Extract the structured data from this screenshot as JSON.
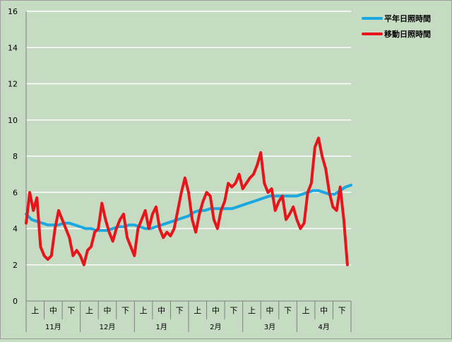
{
  "chart_data": {
    "type": "line",
    "ylim": [
      0,
      16
    ],
    "y_ticks": [
      "0",
      "2",
      "4",
      "6",
      "8",
      "10",
      "12",
      "14",
      "16"
    ],
    "grid": true,
    "legend_position": "top-right",
    "x_sub_labels": [
      "上",
      "中",
      "下"
    ],
    "x_months": [
      "11月",
      "12月",
      "1月",
      "2月",
      "3月",
      "4月"
    ],
    "colors": {
      "background": "#c5dcc2",
      "normal_line": "#1ba7e0",
      "moving_line": "#e8141a",
      "grid": "#ffffff"
    },
    "series": [
      {
        "name": "平年日照時間",
        "x": [
          0,
          3,
          6,
          9,
          12,
          15,
          18,
          21,
          24,
          27,
          30,
          33,
          36,
          39,
          42,
          45,
          48,
          51,
          54,
          57,
          60,
          63,
          66,
          69,
          72,
          75,
          78,
          81,
          84,
          87,
          90,
          93,
          96,
          99,
          102,
          105,
          108,
          111,
          114,
          117,
          120,
          123,
          126,
          129,
          132,
          135,
          138,
          141,
          144,
          147,
          150,
          153,
          156,
          159,
          162,
          165,
          168,
          171,
          174,
          177,
          180
        ],
        "values": [
          4.8,
          4.5,
          4.4,
          4.3,
          4.2,
          4.2,
          4.2,
          4.3,
          4.3,
          4.2,
          4.1,
          4.0,
          4.0,
          3.9,
          3.9,
          3.9,
          4.0,
          4.1,
          4.1,
          4.2,
          4.2,
          4.1,
          4.0,
          4.0,
          4.1,
          4.2,
          4.3,
          4.4,
          4.5,
          4.6,
          4.7,
          4.9,
          5.0,
          5.0,
          5.1,
          5.1,
          5.1,
          5.1,
          5.1,
          5.2,
          5.3,
          5.4,
          5.5,
          5.6,
          5.7,
          5.8,
          5.8,
          5.8,
          5.8,
          5.8,
          5.8,
          5.9,
          6.0,
          6.1,
          6.1,
          6.0,
          5.9,
          5.9,
          6.1,
          6.3,
          6.4
        ]
      },
      {
        "name": "移動日照時間",
        "x": [
          0,
          2,
          4,
          6,
          8,
          10,
          12,
          14,
          16,
          18,
          20,
          22,
          24,
          26,
          28,
          30,
          32,
          34,
          36,
          38,
          40,
          42,
          44,
          46,
          48,
          50,
          52,
          54,
          56,
          58,
          60,
          62,
          64,
          66,
          68,
          70,
          72,
          74,
          76,
          78,
          80,
          82,
          84,
          86,
          88,
          90,
          92,
          94,
          96,
          98,
          100,
          102,
          104,
          106,
          108,
          110,
          112,
          114,
          116,
          118,
          120,
          122,
          124,
          126,
          128,
          130,
          132,
          134,
          136,
          138,
          140,
          142,
          144,
          146,
          148,
          150,
          152,
          154,
          156,
          158,
          160,
          162,
          164,
          166,
          168,
          170,
          172,
          174,
          176,
          178
        ],
        "values": [
          4.3,
          6.0,
          5.0,
          5.7,
          3.0,
          2.5,
          2.3,
          2.5,
          4.0,
          5.0,
          4.5,
          4.0,
          3.5,
          2.5,
          2.8,
          2.5,
          2.0,
          2.8,
          3.0,
          3.8,
          4.0,
          5.4,
          4.5,
          3.8,
          3.3,
          4.0,
          4.5,
          4.8,
          3.5,
          3.0,
          2.5,
          4.0,
          4.5,
          5.0,
          4.0,
          4.8,
          5.2,
          4.0,
          3.5,
          3.8,
          3.6,
          4.0,
          5.0,
          6.0,
          6.8,
          6.0,
          4.5,
          3.8,
          4.8,
          5.5,
          6.0,
          5.8,
          4.5,
          4.0,
          5.0,
          5.5,
          6.5,
          6.3,
          6.5,
          7.0,
          6.2,
          6.5,
          6.8,
          7.0,
          7.5,
          8.2,
          6.5,
          6.0,
          6.2,
          5.0,
          5.5,
          5.8,
          4.5,
          4.8,
          5.2,
          4.5,
          4.0,
          4.3,
          6.0,
          6.5,
          8.5,
          9.0,
          8.0,
          7.3,
          6.0,
          5.2,
          5.0,
          6.3,
          4.5,
          2.0
        ]
      }
    ]
  }
}
